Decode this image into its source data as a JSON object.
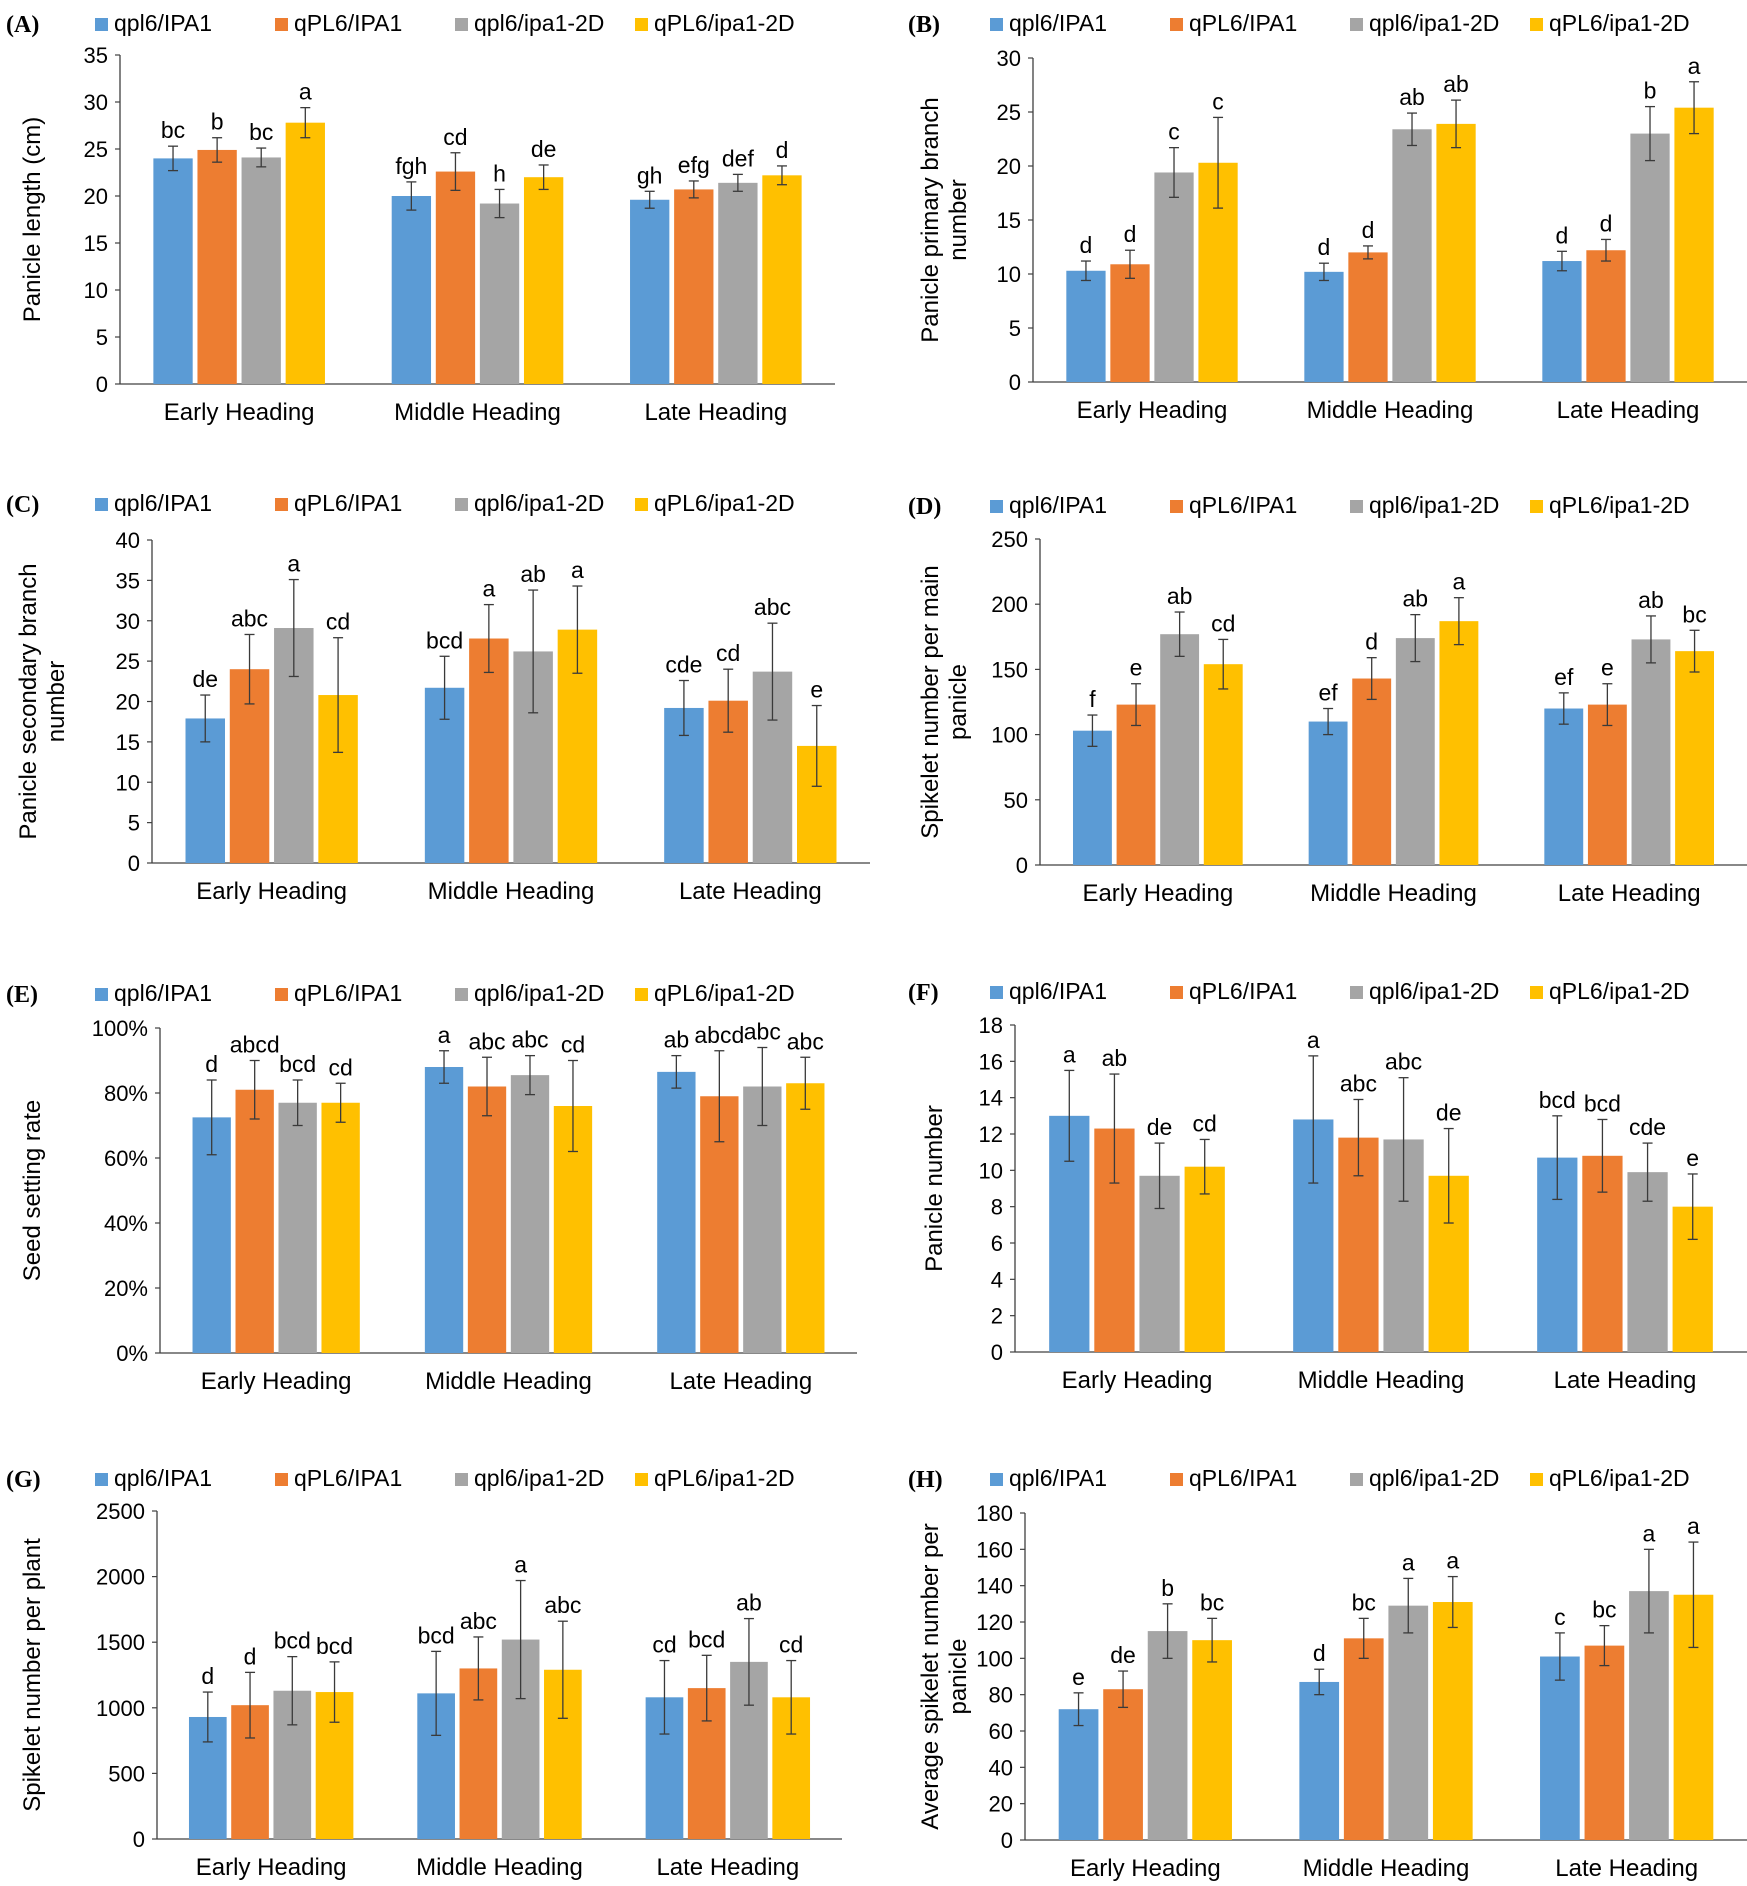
{
  "colors": [
    "#5B9BD5",
    "#ED7D31",
    "#A5A5A5",
    "#FFC000"
  ],
  "legend_labels": [
    "qpl6/IPA1",
    "qPL6/IPA1",
    "qpl6/ipa1-2D",
    "qPL6/ipa1-2D"
  ],
  "chart_data": [
    {
      "type": "bar",
      "panel": "(A)",
      "title": "",
      "xlabel": "",
      "ylabel": [
        "Panicle length (cm)"
      ],
      "categories": [
        "Early Heading",
        "Middle Heading",
        "Late Heading"
      ],
      "ylim": [
        0,
        35
      ],
      "yticks": [
        0,
        5,
        10,
        15,
        20,
        25,
        30,
        35
      ],
      "tick_format": "number",
      "series": [
        {
          "name": "qpl6/IPA1",
          "values": [
            24.0,
            20.0,
            19.6
          ],
          "errors": [
            1.3,
            1.5,
            0.9
          ],
          "labels": [
            "bc",
            "fgh",
            "gh"
          ]
        },
        {
          "name": "qPL6/IPA1",
          "values": [
            24.9,
            22.6,
            20.7
          ],
          "errors": [
            1.3,
            2.0,
            0.9
          ],
          "labels": [
            "b",
            "cd",
            "efg"
          ]
        },
        {
          "name": "qpl6/ipa1-2D",
          "values": [
            24.1,
            19.2,
            21.4
          ],
          "errors": [
            1.0,
            1.5,
            0.9
          ],
          "labels": [
            "bc",
            "h",
            "def"
          ]
        },
        {
          "name": "qPL6/ipa1-2D",
          "values": [
            27.8,
            22.0,
            22.2
          ],
          "errors": [
            1.6,
            1.3,
            1.0
          ],
          "labels": [
            "a",
            "de",
            "d"
          ]
        }
      ]
    },
    {
      "type": "bar",
      "panel": "(B)",
      "title": "",
      "xlabel": "",
      "ylabel": [
        "Panicle primary branch",
        "number"
      ],
      "categories": [
        "Early Heading",
        "Middle Heading",
        "Late Heading"
      ],
      "ylim": [
        0,
        30
      ],
      "yticks": [
        0,
        5,
        10,
        15,
        20,
        25,
        30
      ],
      "tick_format": "number",
      "series": [
        {
          "name": "qpl6/IPA1",
          "values": [
            10.3,
            10.2,
            11.2
          ],
          "errors": [
            0.9,
            0.8,
            0.9
          ],
          "labels": [
            "d",
            "d",
            "d"
          ]
        },
        {
          "name": "qPL6/IPA1",
          "values": [
            10.9,
            12.0,
            12.2
          ],
          "errors": [
            1.3,
            0.6,
            1.0
          ],
          "labels": [
            "d",
            "d",
            "d"
          ]
        },
        {
          "name": "qpl6/ipa1-2D",
          "values": [
            19.4,
            23.4,
            23.0
          ],
          "errors": [
            2.3,
            1.5,
            2.5
          ],
          "labels": [
            "c",
            "ab",
            "b"
          ]
        },
        {
          "name": "qPL6/ipa1-2D",
          "values": [
            20.3,
            23.9,
            25.4
          ],
          "errors": [
            4.2,
            2.2,
            2.4
          ],
          "labels": [
            "c",
            "ab",
            "a"
          ]
        }
      ]
    },
    {
      "type": "bar",
      "panel": "(C)",
      "title": "",
      "xlabel": "",
      "ylabel": [
        "Panicle secondary branch",
        "number"
      ],
      "categories": [
        "Early Heading",
        "Middle Heading",
        "Late Heading"
      ],
      "ylim": [
        0,
        40
      ],
      "yticks": [
        0,
        5,
        10,
        15,
        20,
        25,
        30,
        35,
        40
      ],
      "tick_format": "number",
      "series": [
        {
          "name": "qpl6/IPA1",
          "values": [
            17.9,
            21.7,
            19.2
          ],
          "errors": [
            2.9,
            3.9,
            3.4
          ],
          "labels": [
            "de",
            "bcd",
            "cde"
          ]
        },
        {
          "name": "qPL6/IPA1",
          "values": [
            24.0,
            27.8,
            20.1
          ],
          "errors": [
            4.3,
            4.2,
            3.9
          ],
          "labels": [
            "abc",
            "a",
            "cd"
          ]
        },
        {
          "name": "qpl6/ipa1-2D",
          "values": [
            29.1,
            26.2,
            23.7
          ],
          "errors": [
            6.0,
            7.6,
            6.0
          ],
          "labels": [
            "a",
            "ab",
            "abc"
          ]
        },
        {
          "name": "qPL6/ipa1-2D",
          "values": [
            20.8,
            28.9,
            14.5
          ],
          "errors": [
            7.1,
            5.4,
            5.0
          ],
          "labels": [
            "cd",
            "a",
            "e"
          ]
        }
      ]
    },
    {
      "type": "bar",
      "panel": "(D)",
      "title": "",
      "xlabel": "",
      "ylabel": [
        "Spikelet number per main",
        "panicle"
      ],
      "categories": [
        "Early Heading",
        "Middle Heading",
        "Late Heading"
      ],
      "ylim": [
        0,
        250
      ],
      "yticks": [
        0,
        50,
        100,
        150,
        200,
        250
      ],
      "tick_format": "number",
      "series": [
        {
          "name": "qpl6/IPA1",
          "values": [
            103,
            110,
            120
          ],
          "errors": [
            12,
            10,
            12
          ],
          "labels": [
            "f",
            "ef",
            "ef"
          ]
        },
        {
          "name": "qPL6/IPA1",
          "values": [
            123,
            143,
            123
          ],
          "errors": [
            16,
            16,
            16
          ],
          "labels": [
            "e",
            "d",
            "e"
          ]
        },
        {
          "name": "qpl6/ipa1-2D",
          "values": [
            177,
            174,
            173
          ],
          "errors": [
            17,
            18,
            18
          ],
          "labels": [
            "ab",
            "ab",
            "ab"
          ]
        },
        {
          "name": "qPL6/ipa1-2D",
          "values": [
            154,
            187,
            164
          ],
          "errors": [
            19,
            18,
            16
          ],
          "labels": [
            "cd",
            "a",
            "bc"
          ]
        }
      ]
    },
    {
      "type": "bar",
      "panel": "(E)",
      "title": "",
      "xlabel": "",
      "ylabel": [
        "Seed setting rate"
      ],
      "categories": [
        "Early Heading",
        "Middle Heading",
        "Late Heading"
      ],
      "ylim": [
        0,
        1
      ],
      "yticks": [
        0,
        0.2,
        0.4,
        0.6,
        0.8,
        1.0
      ],
      "tick_format": "percent",
      "series": [
        {
          "name": "qpl6/IPA1",
          "values": [
            0.725,
            0.88,
            0.865
          ],
          "errors": [
            0.115,
            0.05,
            0.05
          ],
          "labels": [
            "d",
            "a",
            "ab"
          ]
        },
        {
          "name": "qPL6/IPA1",
          "values": [
            0.81,
            0.82,
            0.79
          ],
          "errors": [
            0.09,
            0.09,
            0.14
          ],
          "labels": [
            "abcd",
            "abc",
            "abcd"
          ]
        },
        {
          "name": "qpl6/ipa1-2D",
          "values": [
            0.77,
            0.855,
            0.82
          ],
          "errors": [
            0.07,
            0.06,
            0.12
          ],
          "labels": [
            "bcd",
            "abc",
            "abc"
          ]
        },
        {
          "name": "qPL6/ipa1-2D",
          "values": [
            0.77,
            0.76,
            0.83
          ],
          "errors": [
            0.06,
            0.14,
            0.08
          ],
          "labels": [
            "cd",
            "cd",
            "abc"
          ]
        }
      ]
    },
    {
      "type": "bar",
      "panel": "(F)",
      "title": "",
      "xlabel": "",
      "ylabel": [
        "Panicle number"
      ],
      "categories": [
        "Early Heading",
        "Middle Heading",
        "Late Heading"
      ],
      "ylim": [
        0,
        18
      ],
      "yticks": [
        0,
        2,
        4,
        6,
        8,
        10,
        12,
        14,
        16,
        18
      ],
      "tick_format": "number",
      "series": [
        {
          "name": "qpl6/IPA1",
          "values": [
            13.0,
            12.8,
            10.7
          ],
          "errors": [
            2.5,
            3.5,
            2.3
          ],
          "labels": [
            "a",
            "a",
            "bcd"
          ]
        },
        {
          "name": "qPL6/IPA1",
          "values": [
            12.3,
            11.8,
            10.8
          ],
          "errors": [
            3.0,
            2.1,
            2.0
          ],
          "labels": [
            "ab",
            "abc",
            "bcd"
          ]
        },
        {
          "name": "qpl6/ipa1-2D",
          "values": [
            9.7,
            11.7,
            9.9
          ],
          "errors": [
            1.8,
            3.4,
            1.6
          ],
          "labels": [
            "de",
            "abc",
            "cde"
          ]
        },
        {
          "name": "qPL6/ipa1-2D",
          "values": [
            10.2,
            9.7,
            8.0
          ],
          "errors": [
            1.5,
            2.6,
            1.8
          ],
          "labels": [
            "cd",
            "de",
            "e"
          ]
        }
      ]
    },
    {
      "type": "bar",
      "panel": "(G)",
      "title": "",
      "xlabel": "",
      "ylabel": [
        "Spikelet number per plant"
      ],
      "categories": [
        "Early Heading",
        "Middle Heading",
        "Late Heading"
      ],
      "ylim": [
        0,
        2500
      ],
      "yticks": [
        0,
        500,
        1000,
        1500,
        2000,
        2500
      ],
      "tick_format": "number",
      "series": [
        {
          "name": "qpl6/IPA1",
          "values": [
            930,
            1110,
            1080
          ],
          "errors": [
            190,
            320,
            280
          ],
          "labels": [
            "d",
            "bcd",
            "cd"
          ]
        },
        {
          "name": "qPL6/IPA1",
          "values": [
            1020,
            1300,
            1150
          ],
          "errors": [
            250,
            240,
            250
          ],
          "labels": [
            "d",
            "abc",
            "bcd"
          ]
        },
        {
          "name": "qpl6/ipa1-2D",
          "values": [
            1130,
            1520,
            1350
          ],
          "errors": [
            260,
            450,
            330
          ],
          "labels": [
            "bcd",
            "a",
            "ab"
          ]
        },
        {
          "name": "qPL6/ipa1-2D",
          "values": [
            1120,
            1290,
            1080
          ],
          "errors": [
            230,
            370,
            280
          ],
          "labels": [
            "bcd",
            "abc",
            "cd"
          ]
        }
      ]
    },
    {
      "type": "bar",
      "panel": "(H)",
      "title": "",
      "xlabel": "",
      "ylabel": [
        "Average spikelet number per",
        "panicle"
      ],
      "categories": [
        "Early Heading",
        "Middle Heading",
        "Late Heading"
      ],
      "ylim": [
        0,
        180
      ],
      "yticks": [
        0,
        20,
        40,
        60,
        80,
        100,
        120,
        140,
        160,
        180
      ],
      "tick_format": "number",
      "series": [
        {
          "name": "qpl6/IPA1",
          "values": [
            72,
            87,
            101
          ],
          "errors": [
            9,
            7,
            13
          ],
          "labels": [
            "e",
            "d",
            "c"
          ]
        },
        {
          "name": "qPL6/IPA1",
          "values": [
            83,
            111,
            107
          ],
          "errors": [
            10,
            11,
            11
          ],
          "labels": [
            "de",
            "bc",
            "bc"
          ]
        },
        {
          "name": "qpl6/ipa1-2D",
          "values": [
            115,
            129,
            137
          ],
          "errors": [
            15,
            15,
            23
          ],
          "labels": [
            "b",
            "a",
            "a"
          ]
        },
        {
          "name": "qPL6/ipa1-2D",
          "values": [
            110,
            131,
            135
          ],
          "errors": [
            12,
            14,
            29
          ],
          "labels": [
            "bc",
            "a",
            "a"
          ]
        }
      ]
    }
  ]
}
